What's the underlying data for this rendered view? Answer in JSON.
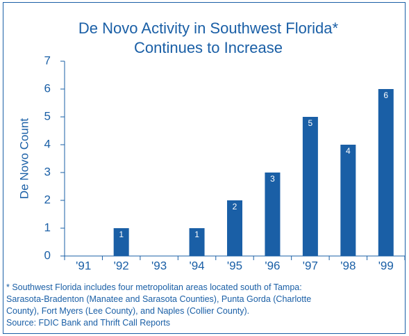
{
  "chart_data": {
    "type": "bar",
    "title": [
      "De Novo Activity in Southwest Florida*",
      "Continues to Increase"
    ],
    "y_label": "De Novo Count",
    "categories": [
      "'91",
      "'92",
      "'93",
      "'94",
      "'95",
      "'96",
      "'97",
      "'98",
      "'99"
    ],
    "values": [
      0,
      1,
      0,
      1,
      2,
      3,
      5,
      4,
      6
    ],
    "color": "#1a5fa6",
    "ylim": [
      0,
      7
    ],
    "yticks": [
      0,
      1,
      2,
      3,
      4,
      5,
      6,
      7
    ],
    "footnote": [
      "* Southwest Florida includes four metropolitan areas located south of Tampa:",
      "Sarasota-Bradenton (Manatee and Sarasota Counties), Punta Gorda (Charlotte",
      "County), Fort Myers (Lee County), and Naples (Collier County).",
      "Source: FDIC Bank and Thrift Call Reports"
    ]
  }
}
